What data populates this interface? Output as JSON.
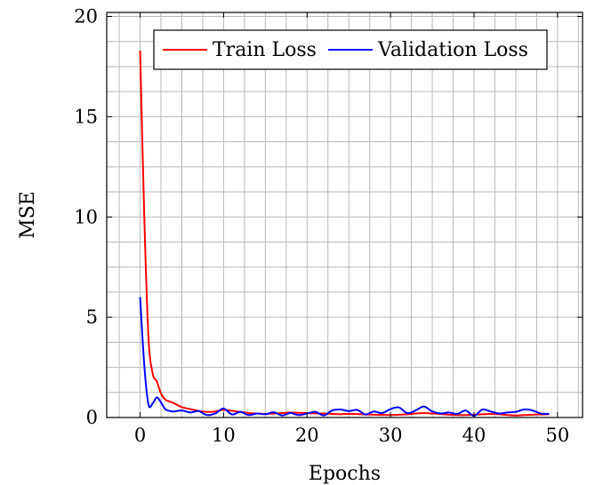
{
  "chart_data": {
    "type": "line",
    "title": "",
    "xlabel": "Epochs",
    "ylabel": "MSE",
    "xlim": [
      -4,
      53
    ],
    "ylim": [
      0,
      20.2
    ],
    "xticks": [
      0,
      10,
      20,
      30,
      40,
      50
    ],
    "xtick_labels": [
      "0",
      "10",
      "20",
      "30",
      "40",
      "50"
    ],
    "yticks": [
      0,
      5,
      10,
      15,
      20
    ],
    "ytick_labels": [
      "0",
      "5",
      "10",
      "15",
      "20"
    ],
    "x_minor_step": 2.5,
    "y_minor_step": 1.25,
    "grid": true,
    "legend_position": "top-right",
    "series": [
      {
        "name": "Train Loss",
        "color": "#ff0000",
        "x": [
          0,
          0.5,
          1,
          1.5,
          2,
          2.5,
          3,
          3.5,
          4,
          5,
          6,
          7,
          8,
          9,
          10,
          11,
          12,
          13,
          14,
          15,
          16,
          17,
          18,
          19,
          20,
          21,
          22,
          23,
          24,
          25,
          26,
          27,
          28,
          29,
          30,
          31,
          32,
          33,
          34,
          35,
          36,
          37,
          38,
          39,
          40,
          41,
          42,
          43,
          44,
          45,
          46,
          47,
          48,
          49
        ],
        "values": [
          18.3,
          10.0,
          4.0,
          2.2,
          1.8,
          1.2,
          0.9,
          0.8,
          0.72,
          0.52,
          0.42,
          0.33,
          0.28,
          0.3,
          0.38,
          0.33,
          0.28,
          0.22,
          0.2,
          0.18,
          0.2,
          0.22,
          0.25,
          0.23,
          0.22,
          0.2,
          0.2,
          0.18,
          0.16,
          0.18,
          0.17,
          0.15,
          0.14,
          0.13,
          0.12,
          0.14,
          0.16,
          0.2,
          0.22,
          0.2,
          0.17,
          0.14,
          0.12,
          0.12,
          0.14,
          0.16,
          0.18,
          0.16,
          0.12,
          0.1,
          0.12,
          0.14,
          0.15,
          0.16
        ]
      },
      {
        "name": "Validation Loss",
        "color": "#0000ff",
        "x": [
          0,
          0.5,
          1,
          1.5,
          2,
          2.5,
          3,
          3.5,
          4,
          5,
          6,
          7,
          8,
          9,
          10,
          11,
          12,
          13,
          14,
          15,
          16,
          17,
          18,
          19,
          20,
          21,
          22,
          23,
          24,
          25,
          26,
          27,
          28,
          29,
          30,
          31,
          32,
          33,
          34,
          35,
          36,
          37,
          38,
          39,
          40,
          41,
          42,
          43,
          44,
          45,
          46,
          47,
          48,
          49
        ],
        "values": [
          6.0,
          2.6,
          0.65,
          0.7,
          1.0,
          0.75,
          0.42,
          0.33,
          0.3,
          0.35,
          0.25,
          0.32,
          0.12,
          0.2,
          0.45,
          0.15,
          0.28,
          0.12,
          0.2,
          0.16,
          0.26,
          0.1,
          0.22,
          0.12,
          0.2,
          0.28,
          0.1,
          0.35,
          0.4,
          0.32,
          0.38,
          0.15,
          0.3,
          0.22,
          0.42,
          0.5,
          0.22,
          0.35,
          0.55,
          0.3,
          0.2,
          0.25,
          0.18,
          0.35,
          0.08,
          0.4,
          0.3,
          0.2,
          0.25,
          0.28,
          0.4,
          0.35,
          0.2,
          0.18
        ]
      }
    ]
  }
}
